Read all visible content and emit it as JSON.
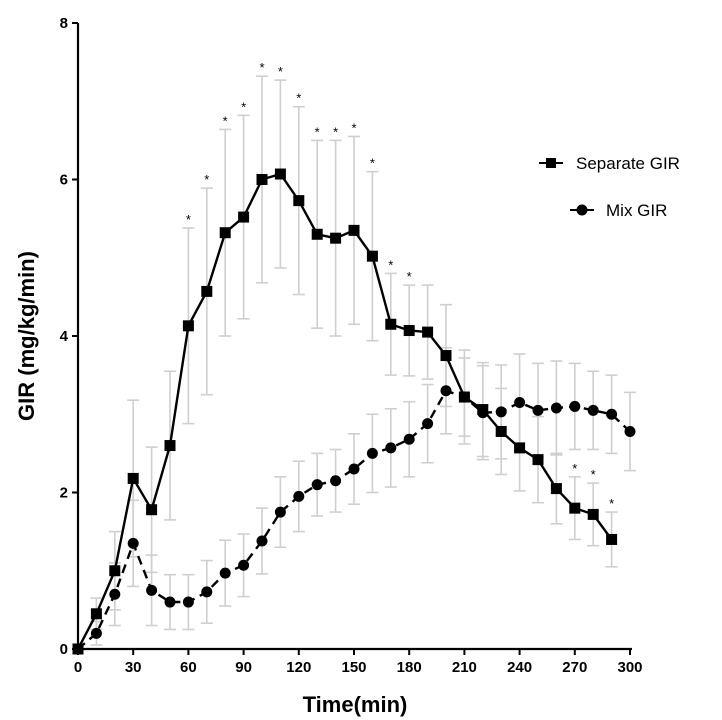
{
  "chart_data": {
    "type": "line",
    "xlabel": "Time(min)",
    "ylabel": "GIR (mg/kg/min)",
    "xlim": [
      0,
      300
    ],
    "ylim": [
      0,
      8
    ],
    "xticks": [
      "0",
      "30",
      "60",
      "90",
      "120",
      "150",
      "180",
      "210",
      "240",
      "270",
      "300"
    ],
    "yticks": [
      "0",
      "2",
      "4",
      "6",
      "8"
    ],
    "grid": false,
    "legend_position": "right",
    "significance_marker": "*",
    "series": [
      {
        "name": "Separate GIR",
        "marker": "square",
        "line_style": "solid",
        "color": "#000000",
        "x": [
          0,
          10,
          20,
          30,
          40,
          50,
          60,
          70,
          80,
          90,
          100,
          110,
          120,
          130,
          140,
          150,
          160,
          170,
          180,
          190,
          200,
          210,
          220,
          230,
          240,
          250,
          260,
          270,
          280,
          290
        ],
        "y": [
          0,
          0.45,
          1.0,
          2.18,
          1.78,
          2.6,
          4.13,
          4.57,
          5.32,
          5.52,
          6.0,
          6.07,
          5.73,
          5.3,
          5.25,
          5.35,
          5.02,
          4.15,
          4.07,
          4.05,
          3.75,
          3.22,
          3.06,
          2.78,
          2.57,
          2.42,
          2.05,
          1.8,
          1.72,
          1.4
        ],
        "error": [
          0,
          0.2,
          0.5,
          1.0,
          0.8,
          0.95,
          1.25,
          1.32,
          1.32,
          1.3,
          1.32,
          1.2,
          1.2,
          1.2,
          1.25,
          1.2,
          1.08,
          0.65,
          0.58,
          0.6,
          0.65,
          0.5,
          0.6,
          0.55,
          0.55,
          0.55,
          0.45,
          0.4,
          0.4,
          0.35
        ],
        "significant_x": [
          60,
          70,
          80,
          90,
          100,
          110,
          120,
          130,
          140,
          150,
          160,
          170,
          180,
          270,
          280,
          290
        ]
      },
      {
        "name": "Mix GIR",
        "marker": "circle",
        "line_style": "dashed",
        "color": "#000000",
        "x": [
          0,
          10,
          20,
          30,
          40,
          50,
          60,
          70,
          80,
          90,
          100,
          110,
          120,
          130,
          140,
          150,
          160,
          170,
          180,
          190,
          200,
          210,
          220,
          230,
          240,
          250,
          260,
          270,
          280,
          290,
          300
        ],
        "y": [
          0,
          0.2,
          0.7,
          1.35,
          0.75,
          0.6,
          0.6,
          0.73,
          0.97,
          1.07,
          1.38,
          1.75,
          1.95,
          2.1,
          2.15,
          2.3,
          2.5,
          2.57,
          2.68,
          2.88,
          3.3,
          3.22,
          3.02,
          3.03,
          3.15,
          3.05,
          3.08,
          3.1,
          3.05,
          3.0,
          2.78
        ],
        "error": [
          0,
          0.15,
          0.4,
          0.55,
          0.45,
          0.35,
          0.35,
          0.4,
          0.42,
          0.4,
          0.42,
          0.45,
          0.45,
          0.4,
          0.4,
          0.45,
          0.5,
          0.5,
          0.48,
          0.5,
          0.55,
          0.6,
          0.6,
          0.6,
          0.62,
          0.6,
          0.6,
          0.55,
          0.5,
          0.5,
          0.5
        ]
      }
    ]
  }
}
